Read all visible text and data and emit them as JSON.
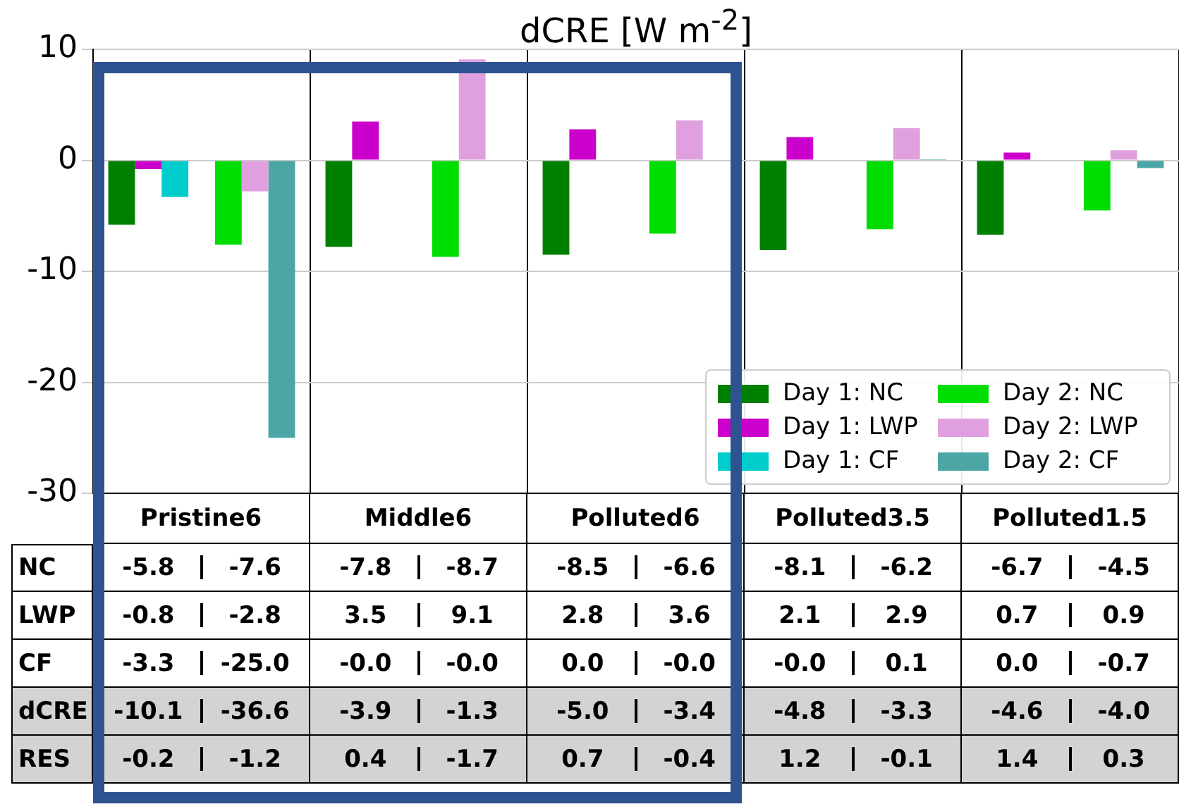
{
  "chart_data": {
    "type": "bar",
    "title": "dCRE [W m$^{-2}$]",
    "categories": [
      "Pristine6",
      "Middle6",
      "Polluted6",
      "Polluted3.5",
      "Polluted1.5"
    ],
    "series": [
      {
        "name": "Day 1: NC",
        "color": "#008000",
        "values": [
          -5.8,
          -7.8,
          -8.5,
          -8.1,
          -6.7
        ]
      },
      {
        "name": "Day 1: LWP",
        "color": "#cc00cc",
        "values": [
          -0.8,
          3.5,
          2.8,
          2.1,
          0.7
        ]
      },
      {
        "name": "Day 1: CF",
        "color": "#00cccc",
        "values": [
          -3.3,
          0,
          0,
          0,
          0
        ]
      },
      {
        "name": "Day 2: NC",
        "color": "#00dd00",
        "values": [
          -7.6,
          -8.7,
          -6.6,
          -6.2,
          -4.5
        ]
      },
      {
        "name": "Day 2: LWP",
        "color": "#e0a0e0",
        "values": [
          -2.8,
          9.1,
          3.6,
          2.9,
          0.9
        ]
      },
      {
        "name": "Day 2: CF",
        "color": "#4ca6a6",
        "values": [
          -25.0,
          0,
          0,
          0.1,
          -0.7
        ]
      }
    ],
    "annotations": [
      "NC",
      "LWP",
      "CF",
      "dCRE",
      "RES",
      "-5.8",
      "-7.6",
      "-7.8",
      "-8.7",
      "-8.5",
      "-6.6",
      "-8.1",
      "-6.2",
      "-6.7",
      "-4.5",
      "-0.8",
      "-2.8",
      "3.5",
      "9.1",
      "2.8",
      "3.6",
      "2.1",
      "2.9",
      "0.7",
      "0.9",
      "-3.3",
      "-25.0",
      "-0.0",
      "-0.0",
      "0.0",
      "-0.0",
      "-0.0",
      "0.1",
      "0.0",
      "-0.7",
      "-10.1",
      "-36.6",
      "-3.9",
      "-1.3",
      "-5.0",
      "-3.4",
      "-4.8",
      "-3.3",
      "-4.6",
      "-4.0",
      "-0.2",
      "-1.2",
      "0.4",
      "-1.7",
      "0.7",
      "-0.4",
      "1.2",
      "-0.1",
      "1.4",
      "0.3"
    ],
    "ylim": [
      -30,
      10
    ],
    "yticks": [
      -30,
      -20,
      -10,
      0,
      10
    ],
    "grid": true,
    "legend": "bottom right"
  }
}
